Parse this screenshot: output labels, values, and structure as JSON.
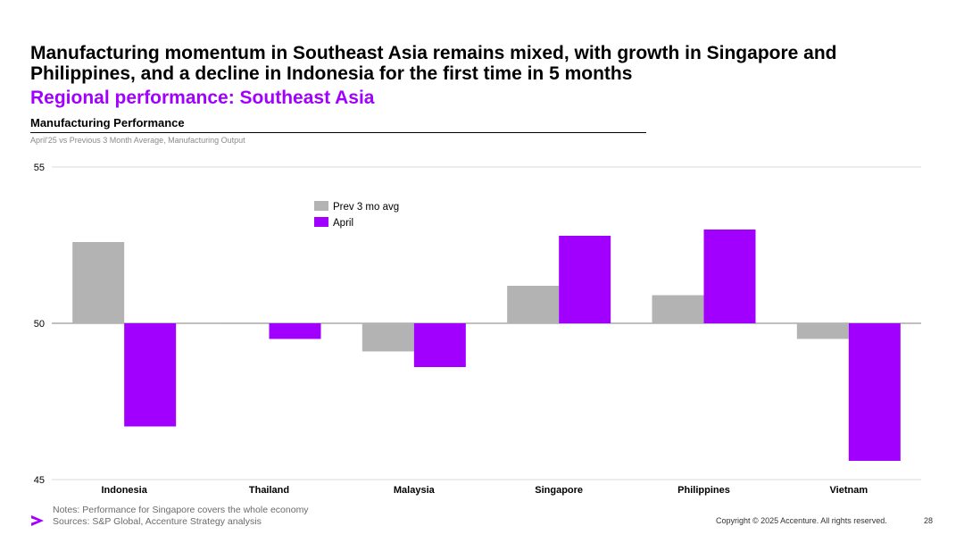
{
  "slide": {
    "headline": "Manufacturing momentum in Southeast Asia remains mixed, with growth in Singapore and Philippines, and a decline in Indonesia for the first time in 5 months",
    "subheadline": "Regional performance: Southeast Asia",
    "notes": "Notes: Performance for Singapore covers the whole economy",
    "sources": "Sources: S&P Global, Accenture Strategy analysis",
    "copyright": "Copyright © 2025 Accenture. All rights reserved.",
    "page_number": "28",
    "logo_icon": "accenture-greater-than-icon"
  },
  "colors": {
    "accent": "#a100ff",
    "prev_avg": "#b3b3b3",
    "axis": "#9a9a9a"
  },
  "chart_data": {
    "type": "bar",
    "title": "Manufacturing Performance",
    "subtitle": "April'25 vs Previous 3 Month Average, Manufacturing Output",
    "categories": [
      "Indonesia",
      "Thailand",
      "Malaysia",
      "Singapore",
      "Philippines",
      "Vietnam"
    ],
    "series": [
      {
        "name": "Prev 3 mo avg",
        "color": "#b3b3b3",
        "values": [
          52.6,
          50.0,
          49.1,
          51.2,
          50.9,
          49.5
        ]
      },
      {
        "name": "April",
        "color": "#a100ff",
        "values": [
          46.7,
          49.5,
          48.6,
          52.8,
          53.0,
          45.6
        ]
      }
    ],
    "baseline": 50,
    "ylim": [
      45,
      55
    ],
    "yticks": [
      45,
      50,
      55
    ],
    "grid": "major-only",
    "legend": "top-center",
    "xlabel": "",
    "ylabel": ""
  }
}
